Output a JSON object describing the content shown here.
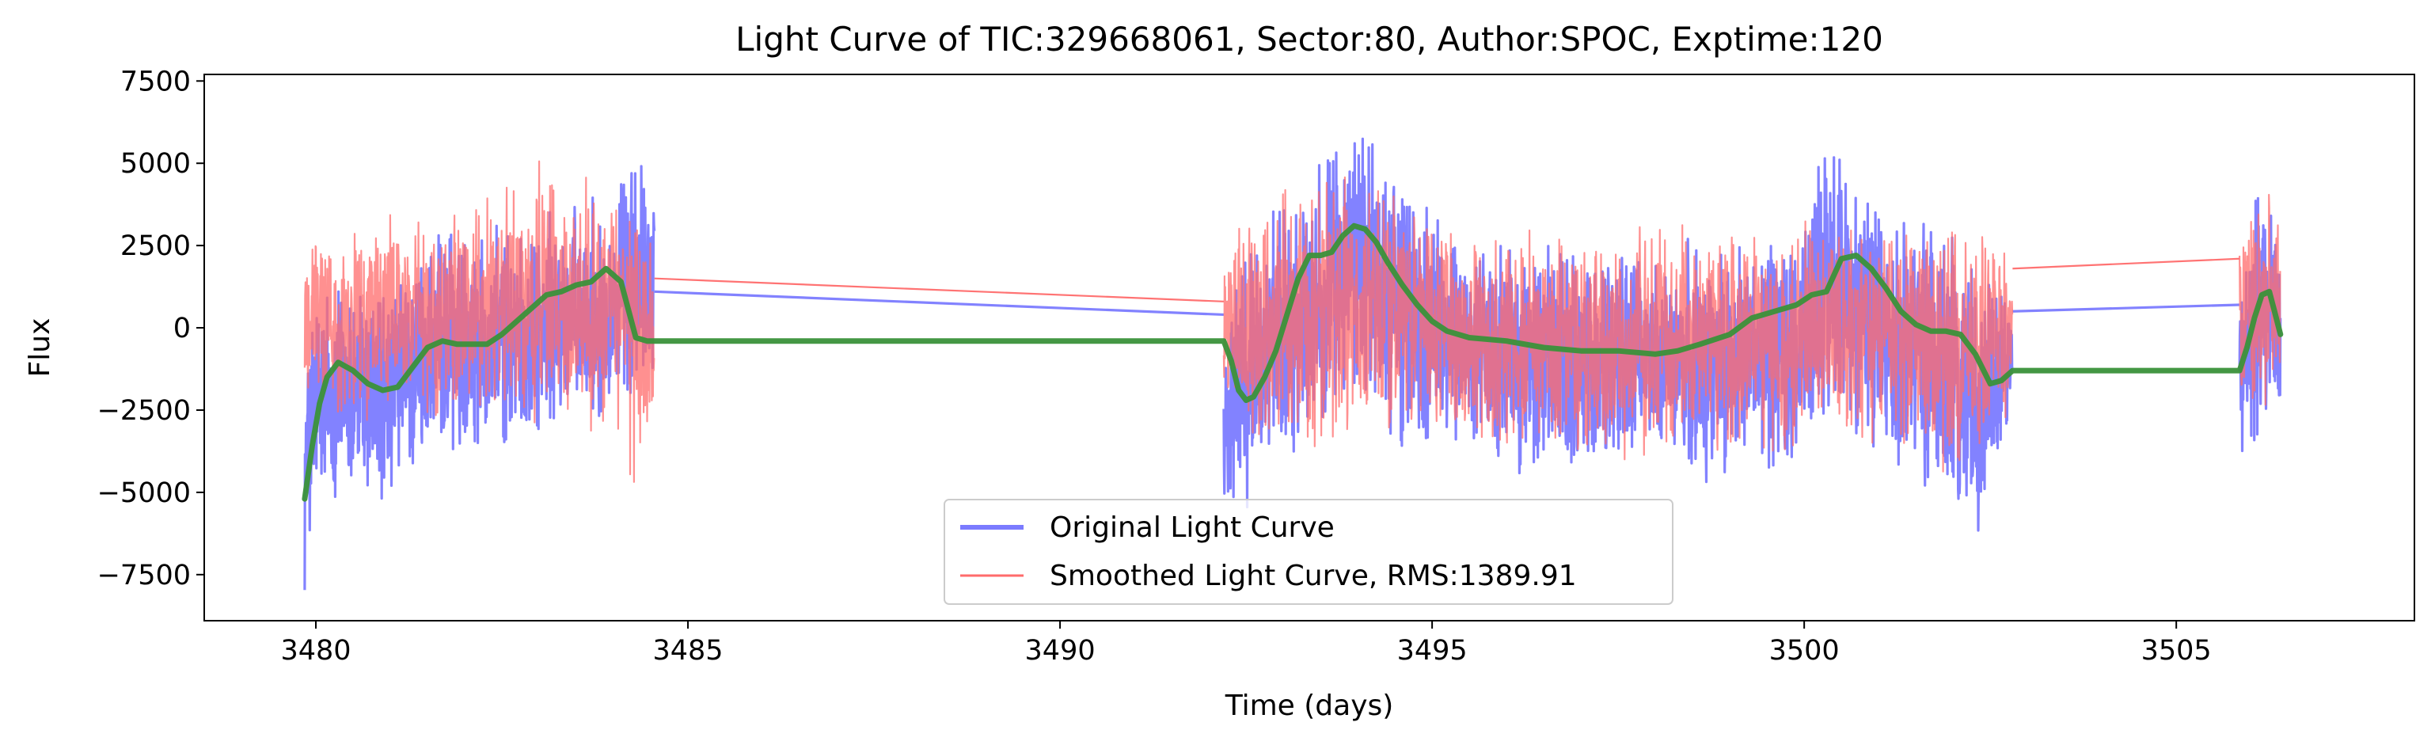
{
  "chart_data": {
    "type": "line",
    "title": "Light Curve of TIC:329668061, Sector:80, Author:SPOC, Exptime:120",
    "xlabel": "Time (days)",
    "ylabel": "Flux",
    "xlim": [
      3478.5,
      3508.2
    ],
    "ylim": [
      -8900,
      7700
    ],
    "x_ticks": [
      3480,
      3485,
      3490,
      3495,
      3500,
      3505
    ],
    "x_tick_labels": [
      "3480",
      "3485",
      "3490",
      "3495",
      "3500",
      "3505"
    ],
    "y_ticks": [
      -7500,
      -5000,
      -2500,
      0,
      2500,
      5000,
      7500
    ],
    "y_tick_labels": [
      "−7500",
      "−5000",
      "−2500",
      "0",
      "2500",
      "5000",
      "7500"
    ],
    "grid": false,
    "legend_position": "lower center",
    "segments": [
      {
        "start": 3479.85,
        "end": 3484.55
      },
      {
        "start": 3492.2,
        "end": 3502.8
      },
      {
        "start": 3505.85,
        "end": 3506.4
      }
    ],
    "series": [
      {
        "name": "Original Light Curve",
        "color": "#7b7bff",
        "kind": "noisy",
        "envelope": {
          "x": [
            3479.85,
            3480.0,
            3480.5,
            3481.0,
            3481.5,
            3482.0,
            3482.5,
            3483.0,
            3483.5,
            3484.0,
            3484.3,
            3484.55,
            3492.2,
            3492.5,
            3493.0,
            3493.5,
            3494.0,
            3494.5,
            3495.0,
            3495.5,
            3496.0,
            3497.0,
            3498.0,
            3499.0,
            3499.9,
            3500.3,
            3500.8,
            3501.3,
            3501.8,
            3502.3,
            3502.55,
            3502.8,
            3505.85,
            3506.1,
            3506.4
          ],
          "hi": [
            -1000,
            2000,
            1800,
            1600,
            2700,
            3400,
            3200,
            3500,
            3800,
            4500,
            5600,
            4700,
            1000,
            3000,
            4200,
            5500,
            6800,
            5500,
            4000,
            2800,
            2700,
            2800,
            2600,
            2900,
            3000,
            5900,
            4700,
            3700,
            3300,
            2600,
            2000,
            1500,
            1000,
            5000,
            3600
          ],
          "lo": [
            -8100,
            -6500,
            -5500,
            -5600,
            -4500,
            -3800,
            -4000,
            -3500,
            -3300,
            -3000,
            -2500,
            -2300,
            -5800,
            -6200,
            -4500,
            -3500,
            -2500,
            -3800,
            -4200,
            -3600,
            -4800,
            -4600,
            -4700,
            -4800,
            -4300,
            -3300,
            -3600,
            -4600,
            -5400,
            -6800,
            -4500,
            -3000,
            -4100,
            -3600,
            -2800
          ]
        },
        "connectors": [
          [
            3484.55,
            1100,
            3492.2,
            400
          ],
          [
            3502.8,
            500,
            3505.85,
            700
          ]
        ]
      },
      {
        "name": "Smoothed Light Curve, RMS:1389.91",
        "color": "#ff6b6b",
        "kind": "noisy",
        "envelope": {
          "x": [
            3479.85,
            3480.0,
            3480.5,
            3481.0,
            3481.5,
            3482.0,
            3482.5,
            3483.0,
            3483.5,
            3484.0,
            3484.3,
            3484.55,
            3492.2,
            3492.5,
            3493.0,
            3493.5,
            3494.0,
            3494.5,
            3495.0,
            3495.5,
            3496.0,
            3497.0,
            3498.0,
            3499.0,
            3499.9,
            3500.3,
            3500.8,
            3501.3,
            3501.8,
            3502.3,
            3502.55,
            3502.8,
            3505.85,
            3506.1,
            3506.4
          ],
          "hi": [
            3000,
            3500,
            3300,
            3800,
            3600,
            4000,
            4300,
            5200,
            4600,
            4600,
            4000,
            3300,
            3200,
            3600,
            4400,
            5000,
            4700,
            4200,
            3500,
            3200,
            3100,
            3000,
            3200,
            3300,
            3400,
            3600,
            3500,
            3300,
            3200,
            3700,
            3100,
            2700,
            4200,
            4400,
            4000
          ],
          "lo": [
            -3500,
            -2800,
            -3000,
            -2700,
            -3200,
            -2900,
            -2700,
            -3100,
            -3700,
            -3400,
            -5300,
            -2600,
            -3300,
            -3700,
            -4000,
            -4300,
            -3800,
            -3300,
            -3300,
            -3500,
            -3800,
            -4300,
            -4000,
            -4200,
            -4000,
            -3400,
            -3800,
            -3900,
            -4600,
            -4300,
            -3600,
            -3100,
            -2400,
            -3400,
            -2800
          ]
        },
        "connectors": [
          [
            3484.55,
            1500,
            3492.2,
            800
          ],
          [
            3502.8,
            1800,
            3505.85,
            2100
          ]
        ]
      },
      {
        "name": "",
        "color": "#3a913a",
        "kind": "trend",
        "x": [
          3479.85,
          3479.95,
          3480.05,
          3480.15,
          3480.3,
          3480.5,
          3480.7,
          3480.9,
          3481.1,
          3481.3,
          3481.5,
          3481.7,
          3481.9,
          3482.1,
          3482.3,
          3482.5,
          3482.7,
          3482.9,
          3483.1,
          3483.3,
          3483.5,
          3483.7,
          3483.9,
          3484.1,
          3484.3,
          3484.45,
          3484.55,
          3492.2,
          3492.3,
          3492.4,
          3492.5,
          3492.6,
          3492.75,
          3492.9,
          3493.05,
          3493.2,
          3493.35,
          3493.5,
          3493.65,
          3493.8,
          3493.95,
          3494.1,
          3494.25,
          3494.4,
          3494.6,
          3494.8,
          3495.0,
          3495.2,
          3495.5,
          3496.0,
          3496.5,
          3497.0,
          3497.5,
          3498.0,
          3498.3,
          3498.6,
          3499.0,
          3499.3,
          3499.6,
          3499.9,
          3500.1,
          3500.3,
          3500.5,
          3500.7,
          3500.9,
          3501.1,
          3501.3,
          3501.5,
          3501.7,
          3501.9,
          3502.1,
          3502.3,
          3502.5,
          3502.65,
          3502.8,
          3505.85,
          3505.95,
          3506.05,
          3506.15,
          3506.25,
          3506.32,
          3506.4
        ],
        "y": [
          -5200,
          -3600,
          -2300,
          -1500,
          -1050,
          -1300,
          -1700,
          -1900,
          -1800,
          -1200,
          -600,
          -400,
          -500,
          -500,
          -500,
          -200,
          200,
          600,
          1000,
          1100,
          1300,
          1400,
          1800,
          1400,
          -300,
          -400,
          -400,
          -400,
          -1000,
          -1900,
          -2200,
          -2100,
          -1500,
          -700,
          400,
          1500,
          2200,
          2200,
          2300,
          2800,
          3100,
          3000,
          2600,
          2000,
          1300,
          700,
          200,
          -100,
          -300,
          -400,
          -600,
          -700,
          -700,
          -800,
          -700,
          -500,
          -200,
          300,
          500,
          700,
          1000,
          1100,
          2100,
          2200,
          1800,
          1200,
          500,
          100,
          -100,
          -100,
          -200,
          -800,
          -1700,
          -1600,
          -1300,
          -1300,
          -600,
          300,
          1000,
          1100,
          500,
          -200
        ]
      }
    ]
  }
}
